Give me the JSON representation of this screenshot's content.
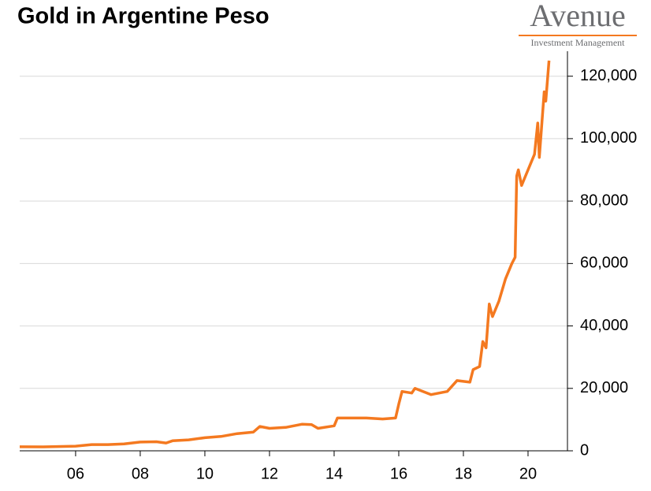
{
  "chart_data": {
    "type": "line",
    "title": "Gold in Argentine Peso",
    "logo": {
      "name": "Avenue",
      "tagline": "Investment Management"
    },
    "x": [
      2004.27,
      2005,
      2006,
      2006.5,
      2007,
      2007.5,
      2008,
      2008.5,
      2008.8,
      2009,
      2009.5,
      2010,
      2010.5,
      2011,
      2011.5,
      2011.7,
      2012,
      2012.5,
      2013,
      2013.3,
      2013.5,
      2014,
      2014.1,
      2014.5,
      2015,
      2015.5,
      2015.9,
      2016,
      2016.1,
      2016.4,
      2016.5,
      2017,
      2017.5,
      2017.8,
      2018.2,
      2018.3,
      2018.5,
      2018.6,
      2018.7,
      2018.8,
      2018.9,
      2019.1,
      2019.3,
      2019.5,
      2019.6,
      2019.65,
      2019.7,
      2019.8,
      2020,
      2020.2,
      2020.3,
      2020.35,
      2020.5,
      2020.55,
      2020.65
    ],
    "series": [
      {
        "name": "Gold in Argentine Peso",
        "color": "#f47920",
        "values": [
          1300,
          1250,
          1500,
          2000,
          2000,
          2200,
          2800,
          2900,
          2500,
          3200,
          3500,
          4200,
          4600,
          5500,
          6000,
          7800,
          7200,
          7500,
          8500,
          8400,
          7200,
          8000,
          10500,
          10500,
          10500,
          10200,
          10500,
          15000,
          19000,
          18500,
          20000,
          18000,
          19000,
          22500,
          22000,
          26000,
          27000,
          35000,
          33000,
          47000,
          43000,
          48000,
          55000,
          60000,
          62000,
          88000,
          90000,
          85000,
          90000,
          95000,
          105000,
          94000,
          115000,
          112000,
          125000
        ]
      }
    ],
    "xlim": [
      2004.27,
      2021.22
    ],
    "xticks": [
      {
        "value": 2006,
        "label": "06"
      },
      {
        "value": 2008,
        "label": "08"
      },
      {
        "value": 2010,
        "label": "10"
      },
      {
        "value": 2012,
        "label": "12"
      },
      {
        "value": 2014,
        "label": "14"
      },
      {
        "value": 2016,
        "label": "16"
      },
      {
        "value": 2018,
        "label": "18"
      },
      {
        "value": 2020,
        "label": "20"
      }
    ],
    "ylim": [
      0,
      128000
    ],
    "yticks": [
      0,
      {
        "value": 20000,
        "label": "20,000"
      },
      {
        "value": 40000,
        "label": "40,000"
      },
      {
        "value": 60000,
        "label": "60,000"
      },
      {
        "value": 80000,
        "label": "80,000"
      },
      {
        "value": 100000,
        "label": "100,000"
      },
      {
        "value": 120000,
        "label": "120,000"
      }
    ],
    "grid": true
  }
}
